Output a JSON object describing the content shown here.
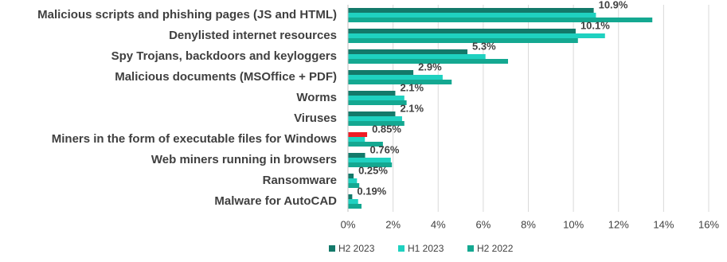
{
  "chart_data": {
    "type": "bar",
    "orientation": "horizontal",
    "categories": [
      "Malicious scripts and phishing pages (JS and HTML)",
      "Denylisted internet resources",
      "Spy Trojans, backdoors and keyloggers",
      "Malicious documents (MSOffice + PDF)",
      "Worms",
      "Viruses",
      "Miners in the form of executable files for Windows",
      "Web miners running in browsers",
      "Ransomware",
      "Malware for AutoCAD"
    ],
    "series": [
      {
        "name": "H2 2023",
        "color": "#13796a",
        "point_colors": [
          null,
          null,
          null,
          null,
          null,
          null,
          "#ee1c25",
          null,
          null,
          null
        ],
        "values": [
          10.9,
          10.1,
          5.3,
          2.9,
          2.1,
          2.1,
          0.85,
          0.76,
          0.25,
          0.19
        ],
        "value_labels": [
          "10.9%",
          "10.1%",
          "5.3%",
          "2.9%",
          "2.1%",
          "2.1%",
          "0.85%",
          "0.76%",
          "0.25%",
          "0.19%"
        ]
      },
      {
        "name": "H1 2023",
        "color": "#1fd1c0",
        "values": [
          11.0,
          11.4,
          6.1,
          4.2,
          2.5,
          2.4,
          0.75,
          1.9,
          0.4,
          0.45
        ]
      },
      {
        "name": "H2 2022",
        "color": "#14a891",
        "values": [
          13.5,
          10.2,
          7.1,
          4.6,
          2.6,
          2.5,
          1.55,
          1.95,
          0.5,
          0.6
        ]
      }
    ],
    "xlim": [
      0,
      16
    ],
    "xticks": [
      {
        "value": 0,
        "label": "0%"
      },
      {
        "value": 2,
        "label": "2%"
      },
      {
        "value": 4,
        "label": "4%"
      },
      {
        "value": 6,
        "label": "6%"
      },
      {
        "value": 8,
        "label": "8%"
      },
      {
        "value": 10,
        "label": "10%"
      },
      {
        "value": 12,
        "label": "12%"
      },
      {
        "value": 14,
        "label": "14%"
      },
      {
        "value": 16,
        "label": "16%"
      }
    ],
    "grid": true,
    "legend": "bottom"
  }
}
